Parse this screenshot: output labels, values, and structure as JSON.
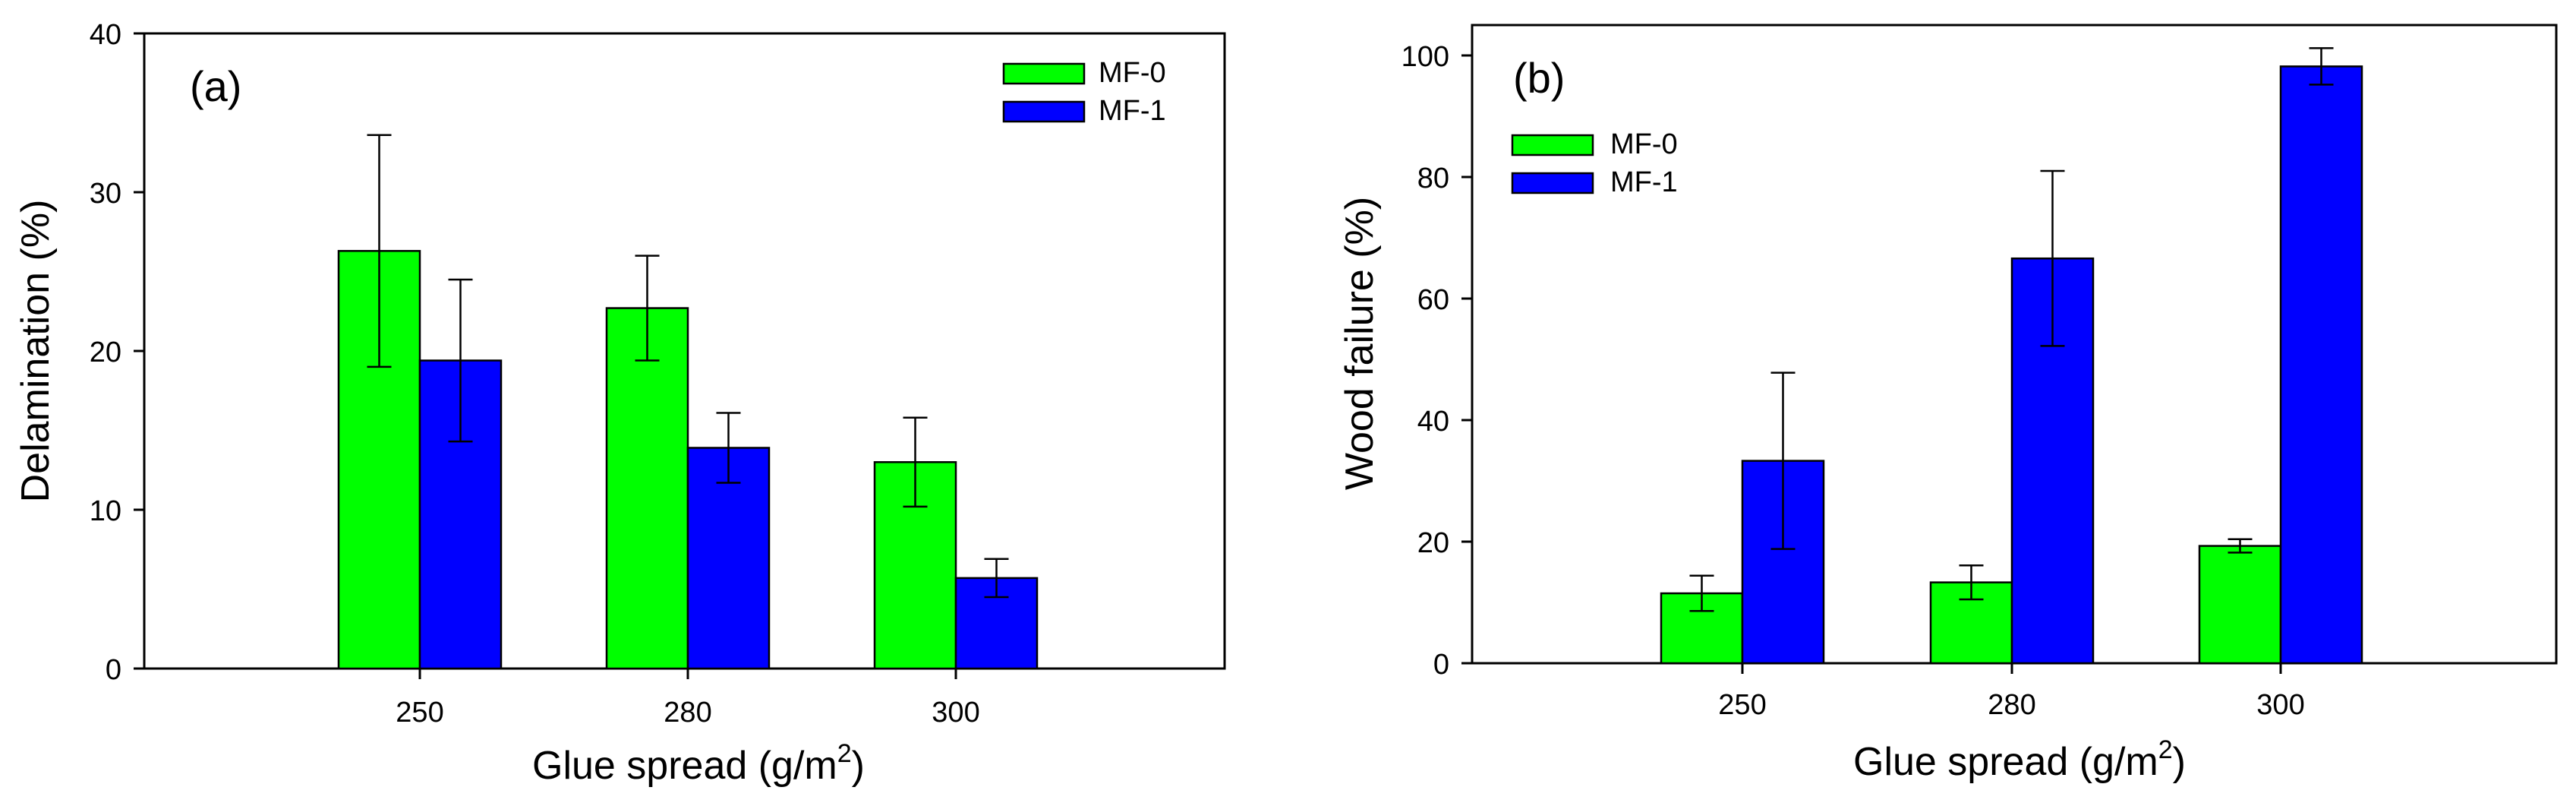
{
  "chart_data": [
    {
      "type": "bar",
      "panel_label": "(a)",
      "categories": [
        "250",
        "280",
        "300"
      ],
      "series": [
        {
          "name": "MF-0",
          "color": "#00ff00",
          "values": [
            26.3,
            22.7,
            13.0
          ],
          "errors": [
            7.3,
            3.3,
            2.8
          ]
        },
        {
          "name": "MF-1",
          "color": "#0000ff",
          "values": [
            19.4,
            13.9,
            5.7
          ],
          "errors": [
            5.1,
            2.2,
            1.2
          ]
        }
      ],
      "xlabel": "Glue spread (g/m",
      "xlabel_sup": "2",
      "xlabel_end": ")",
      "ylabel": "Delamination (%)",
      "ylim": [
        0,
        40
      ],
      "yticks": [
        "0",
        "10",
        "20",
        "30",
        "40"
      ],
      "legend_position": "top-right"
    },
    {
      "type": "bar",
      "panel_label": "(b)",
      "categories": [
        "250",
        "280",
        "300"
      ],
      "series": [
        {
          "name": "MF-0",
          "color": "#00ff00",
          "values": [
            11.5,
            13.3,
            19.3
          ],
          "errors": [
            2.9,
            2.8,
            1.1
          ]
        },
        {
          "name": "MF-1",
          "color": "#0000ff",
          "values": [
            33.3,
            66.6,
            98.2
          ],
          "errors": [
            14.5,
            14.4,
            3.0
          ]
        }
      ],
      "xlabel": "Glue spread (g/m",
      "xlabel_sup": "2",
      "xlabel_end": ")",
      "ylabel": "Wood failure (%)",
      "ylim": [
        0,
        105
      ],
      "yticks": [
        "0",
        "20",
        "40",
        "60",
        "80",
        "100"
      ],
      "legend_position": "top-left"
    }
  ]
}
